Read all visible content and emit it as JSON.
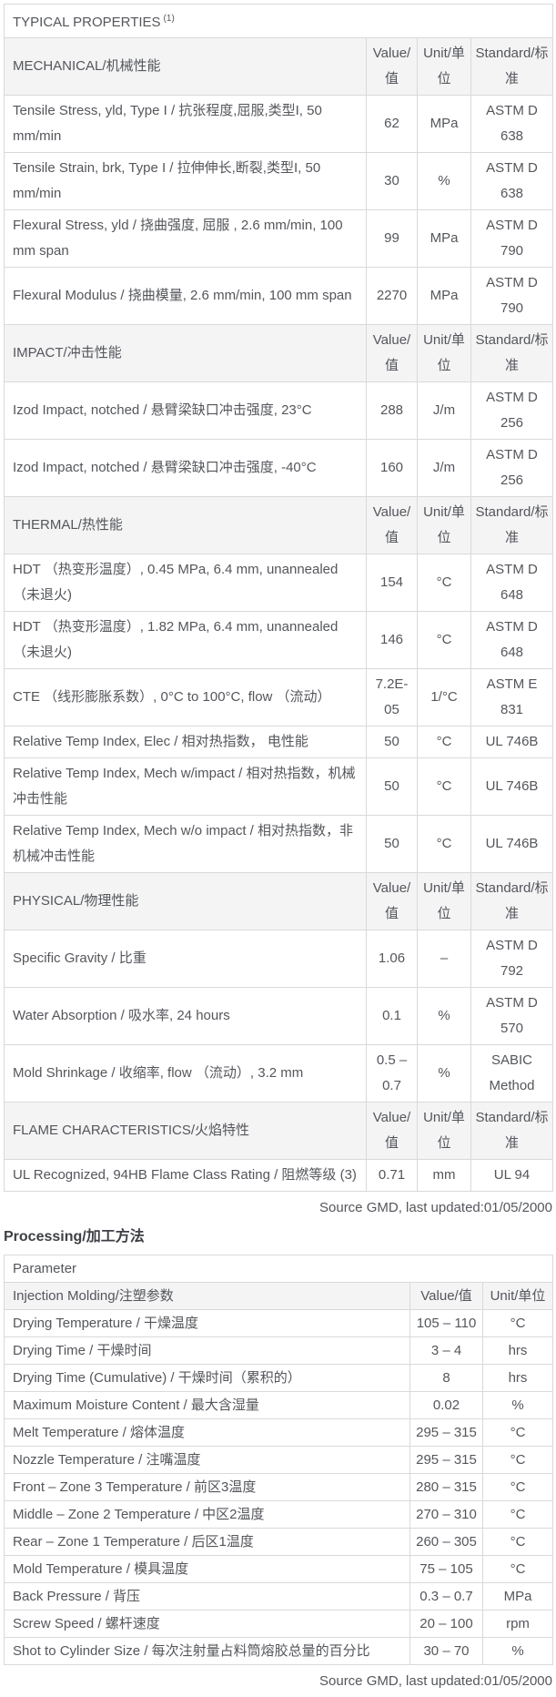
{
  "typical_properties": {
    "title": "TYPICAL PROPERTIES",
    "title_superscript": "(1)",
    "col_headers": {
      "value": "Value/值",
      "unit": "Unit/单位",
      "standard": "Standard/标准"
    },
    "sections": [
      {
        "name": "MECHANICAL/机械性能",
        "rows": [
          {
            "name": "Tensile Stress, yld, Type I / 抗张程度,屈服,类型I, 50 mm/min",
            "value": "62",
            "unit": "MPa",
            "standard": "ASTM D 638"
          },
          {
            "name": "Tensile Strain, brk, Type I / 拉伸伸长,断裂,类型I, 50 mm/min",
            "value": "30",
            "unit": "%",
            "standard": "ASTM D 638"
          },
          {
            "name": "Flexural Stress, yld / 挠曲强度, 屈服 , 2.6 mm/min, 100 mm span",
            "value": "99",
            "unit": "MPa",
            "standard": "ASTM D 790"
          },
          {
            "name": "Flexural Modulus / 挠曲模量, 2.6 mm/min, 100 mm span",
            "value": "2270",
            "unit": "MPa",
            "standard": "ASTM D 790"
          }
        ]
      },
      {
        "name": "IMPACT/冲击性能",
        "rows": [
          {
            "name": "Izod Impact, notched / 悬臂梁缺口冲击强度, 23°C",
            "value": "288",
            "unit": "J/m",
            "standard": "ASTM D 256"
          },
          {
            "name": "Izod Impact, notched / 悬臂梁缺口冲击强度, -40°C",
            "value": "160",
            "unit": "J/m",
            "standard": "ASTM D 256"
          }
        ]
      },
      {
        "name": "THERMAL/热性能",
        "rows": [
          {
            "name": "HDT （热变形温度）, 0.45 MPa, 6.4 mm, unannealed （未退火)",
            "value": "154",
            "unit": "°C",
            "standard": "ASTM D 648"
          },
          {
            "name": "HDT （热变形温度）, 1.82 MPa, 6.4 mm, unannealed （未退火)",
            "value": "146",
            "unit": "°C",
            "standard": "ASTM D 648"
          },
          {
            "name": "CTE （线形膨胀系数）, 0°C to 100°C, flow （流动）",
            "value": "7.2E-05",
            "unit": "1/°C",
            "standard": "ASTM E 831"
          },
          {
            "name": "Relative Temp Index, Elec / 相对热指数， 电性能",
            "value": "50",
            "unit": "°C",
            "standard": "UL 746B"
          },
          {
            "name": "Relative Temp Index, Mech w/impact / 相对热指数，机械冲击性能",
            "value": "50",
            "unit": "°C",
            "standard": "UL 746B"
          },
          {
            "name": "Relative Temp Index, Mech w/o impact / 相对热指数，非机械冲击性能",
            "value": "50",
            "unit": "°C",
            "standard": "UL 746B"
          }
        ]
      },
      {
        "name": "PHYSICAL/物理性能",
        "rows": [
          {
            "name": "Specific Gravity / 比重",
            "value": "1.06",
            "unit": "–",
            "standard": "ASTM D 792"
          },
          {
            "name": "Water Absorption / 吸水率, 24 hours",
            "value": "0.1",
            "unit": "%",
            "standard": "ASTM D 570"
          },
          {
            "name": "Mold Shrinkage / 收缩率, flow （流动）, 3.2 mm",
            "value": "0.5 – 0.7",
            "unit": "%",
            "standard": "SABIC Method"
          }
        ]
      },
      {
        "name": "FLAME CHARACTERISTICS/火焰特性",
        "rows": [
          {
            "name": "UL Recognized, 94HB Flame Class Rating / 阻燃等级 (3)",
            "value": "0.71",
            "unit": "mm",
            "standard": "UL 94"
          }
        ]
      }
    ],
    "source_note": "Source GMD, last updated:01/05/2000"
  },
  "processing": {
    "heading": "Processing/加工方法",
    "param_header": "Parameter",
    "group_header": "Injection Molding/注塑参数",
    "col_headers": {
      "value": "Value/值",
      "unit": "Unit/单位"
    },
    "rows": [
      {
        "name": "Drying Temperature / 干燥温度",
        "value": "105 – 110",
        "unit": "°C"
      },
      {
        "name": "Drying Time / 干燥时间",
        "value": "3 – 4",
        "unit": "hrs"
      },
      {
        "name": "Drying Time (Cumulative) / 干燥时间（累积的）",
        "value": "8",
        "unit": "hrs"
      },
      {
        "name": "Maximum Moisture Content / 最大含湿量",
        "value": "0.02",
        "unit": "%"
      },
      {
        "name": "Melt Temperature / 熔体温度",
        "value": "295 – 315",
        "unit": "°C"
      },
      {
        "name": "Nozzle Temperature / 注嘴温度",
        "value": "295 – 315",
        "unit": "°C"
      },
      {
        "name": "Front – Zone 3 Temperature / 前区3温度",
        "value": "280 – 315",
        "unit": "°C"
      },
      {
        "name": "Middle – Zone 2 Temperature / 中区2温度",
        "value": "270 – 310",
        "unit": "°C"
      },
      {
        "name": "Rear – Zone 1 Temperature / 后区1温度",
        "value": "260 – 305",
        "unit": "°C"
      },
      {
        "name": "Mold Temperature / 模具温度",
        "value": "75 – 105",
        "unit": "°C"
      },
      {
        "name": "Back Pressure / 背压",
        "value": "0.3 – 0.7",
        "unit": "MPa"
      },
      {
        "name": "Screw Speed / 螺杆速度",
        "value": "20 – 100",
        "unit": "rpm"
      },
      {
        "name": "Shot to Cylinder Size / 每次注射量占料筒熔胶总量的百分比",
        "value": "30 – 70",
        "unit": "%"
      }
    ],
    "source_note": "Source GMD, last updated:01/05/2000"
  },
  "colors": {
    "header_row_bg": "#f4f4f5",
    "table_border": "#d8d9da",
    "body_text": "#54565b",
    "heading_text": "#3e4045"
  }
}
